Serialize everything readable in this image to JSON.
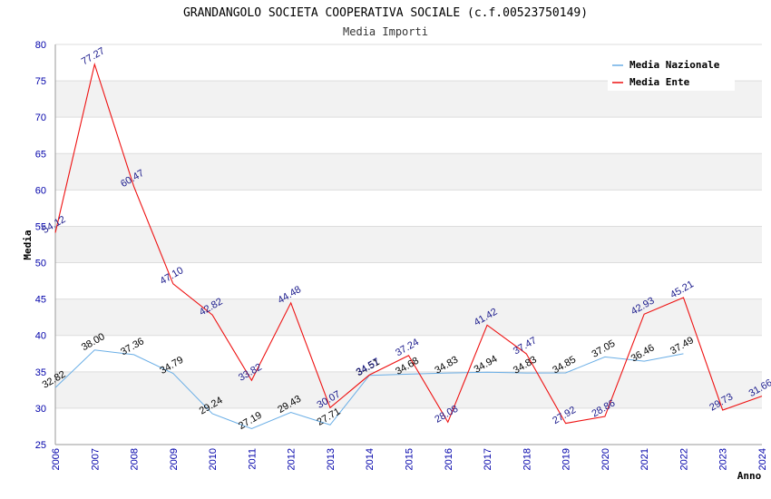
{
  "chart_data": {
    "type": "line",
    "title": "GRANDANGOLO SOCIETA COOPERATIVA SOCIALE (c.f.00523750149)",
    "subtitle": "Media Importi",
    "xlabel": "Anno",
    "ylabel": "Media",
    "ylim": [
      25,
      80
    ],
    "yticks": [
      "25",
      "30",
      "35",
      "40",
      "45",
      "50",
      "55",
      "60",
      "65",
      "70",
      "75",
      "80"
    ],
    "categories": [
      "2006",
      "2007",
      "2008",
      "2009",
      "2010",
      "2011",
      "2012",
      "2013",
      "2014",
      "2015",
      "2016",
      "2017",
      "2018",
      "2019",
      "2020",
      "2021",
      "2022",
      "2023",
      "2024"
    ],
    "legend_position": "top-right",
    "series": [
      {
        "name": "Media Nazionale",
        "color": "#6aaee6",
        "values": [
          32.82,
          38.0,
          37.36,
          34.79,
          29.24,
          27.19,
          29.43,
          27.71,
          34.51,
          34.68,
          34.83,
          34.94,
          34.83,
          34.85,
          37.05,
          36.46,
          37.49,
          null,
          null
        ],
        "labels": [
          "32.82",
          "38.00",
          "37.36",
          "34.79",
          "29.24",
          "27.19",
          "29.43",
          "27.71",
          "34.51",
          "34.68",
          "34.83",
          "34.94",
          "34.83",
          "34.85",
          "37.05",
          "36.46",
          "37.49",
          "",
          ""
        ]
      },
      {
        "name": "Media Ente",
        "color": "#ee1111",
        "values": [
          54.12,
          77.27,
          60.47,
          47.1,
          42.82,
          33.82,
          44.48,
          30.07,
          34.57,
          37.24,
          28.08,
          41.42,
          37.47,
          27.92,
          28.86,
          42.93,
          45.21,
          29.73,
          31.66
        ],
        "labels": [
          "54.12",
          "77.27",
          "60.47",
          "47.10",
          "42.82",
          "33.82",
          "44.48",
          "30.07",
          "34.57",
          "37.24",
          "28.08",
          "41.42",
          "37.47",
          "27.92",
          "28.86",
          "42.93",
          "45.21",
          "29.73",
          "31.66"
        ]
      }
    ]
  }
}
